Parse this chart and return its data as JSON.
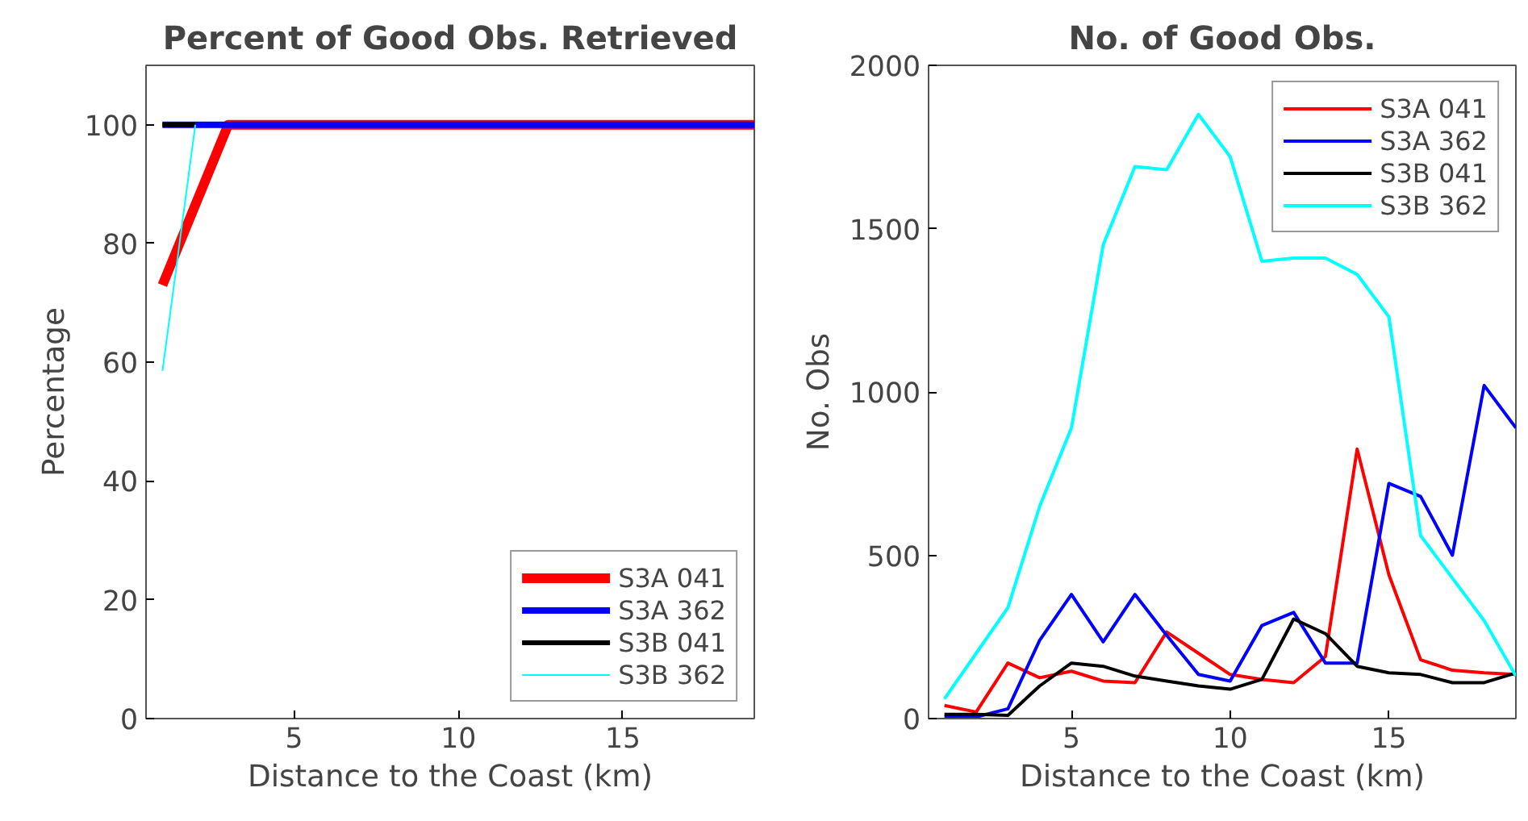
{
  "chart_data": [
    {
      "type": "line",
      "title": "Percent of Good Obs. Retrieved",
      "xlabel": "Distance to the Coast (km)",
      "ylabel": "Percentage",
      "x": [
        1,
        2,
        3,
        4,
        5,
        6,
        7,
        8,
        9,
        10,
        11,
        12,
        13,
        14,
        15,
        16,
        17,
        18,
        19
      ],
      "series": [
        {
          "name": "S3A 041",
          "color": "#ff0000",
          "values": [
            73,
            86.5,
            100,
            100,
            100,
            100,
            100,
            100,
            100,
            100,
            100,
            100,
            100,
            100,
            100,
            100,
            100,
            100,
            100
          ]
        },
        {
          "name": "S3A 362",
          "color": "#0000ff",
          "values": [
            100,
            100,
            100,
            100,
            100,
            100,
            100,
            100,
            100,
            100,
            100,
            100,
            100,
            100,
            100,
            100,
            100,
            100,
            100
          ]
        },
        {
          "name": "S3B 041",
          "color": "#000000",
          "values": [
            100,
            100,
            null,
            null,
            null,
            null,
            null,
            null,
            null,
            null,
            null,
            null,
            null,
            null,
            null,
            null,
            null,
            null,
            null
          ]
        },
        {
          "name": "S3B 362",
          "color": "#00ffff",
          "values": [
            58.5,
            100,
            null,
            null,
            null,
            null,
            null,
            null,
            null,
            null,
            null,
            null,
            null,
            null,
            null,
            null,
            null,
            null,
            null
          ]
        }
      ],
      "xlim": [
        0.5,
        19
      ],
      "ylim": [
        0,
        110
      ],
      "xticks": [
        5,
        10,
        15
      ],
      "yticks": [
        0,
        20,
        40,
        60,
        80,
        100
      ],
      "legend": "bottom right"
    },
    {
      "type": "line",
      "title": "No. of Good Obs.",
      "xlabel": "Distance to the Coast (km)",
      "ylabel": "No. Obs",
      "x": [
        1,
        2,
        3,
        4,
        5,
        6,
        7,
        8,
        9,
        10,
        11,
        12,
        13,
        14,
        15,
        16,
        17,
        18,
        19
      ],
      "series": [
        {
          "name": "S3A 041",
          "color": "#ff0000",
          "values": [
            40,
            20,
            170,
            125,
            145,
            115,
            110,
            265,
            200,
            135,
            120,
            110,
            190,
            825,
            440,
            180,
            148,
            140,
            135
          ]
        },
        {
          "name": "S3A 362",
          "color": "#0000ff",
          "values": [
            5,
            5,
            30,
            240,
            380,
            235,
            380,
            255,
            135,
            115,
            285,
            325,
            170,
            170,
            720,
            680,
            500,
            1020,
            890
          ]
        },
        {
          "name": "S3B 041",
          "color": "#000000",
          "values": [
            13,
            13,
            10,
            100,
            170,
            160,
            130,
            115,
            100,
            90,
            120,
            305,
            260,
            160,
            140,
            135,
            110,
            110,
            140
          ]
        },
        {
          "name": "S3B 362",
          "color": "#00ffff",
          "values": [
            60,
            200,
            340,
            650,
            890,
            1450,
            1690,
            1680,
            1850,
            1720,
            1400,
            1410,
            1410,
            1360,
            1230,
            560,
            430,
            300,
            130
          ]
        }
      ],
      "xlim": [
        0.5,
        19
      ],
      "ylim": [
        0,
        2000
      ],
      "xticks": [
        5,
        10,
        15
      ],
      "yticks": [
        0,
        500,
        1000,
        1500,
        2000
      ],
      "legend": "top right"
    }
  ]
}
